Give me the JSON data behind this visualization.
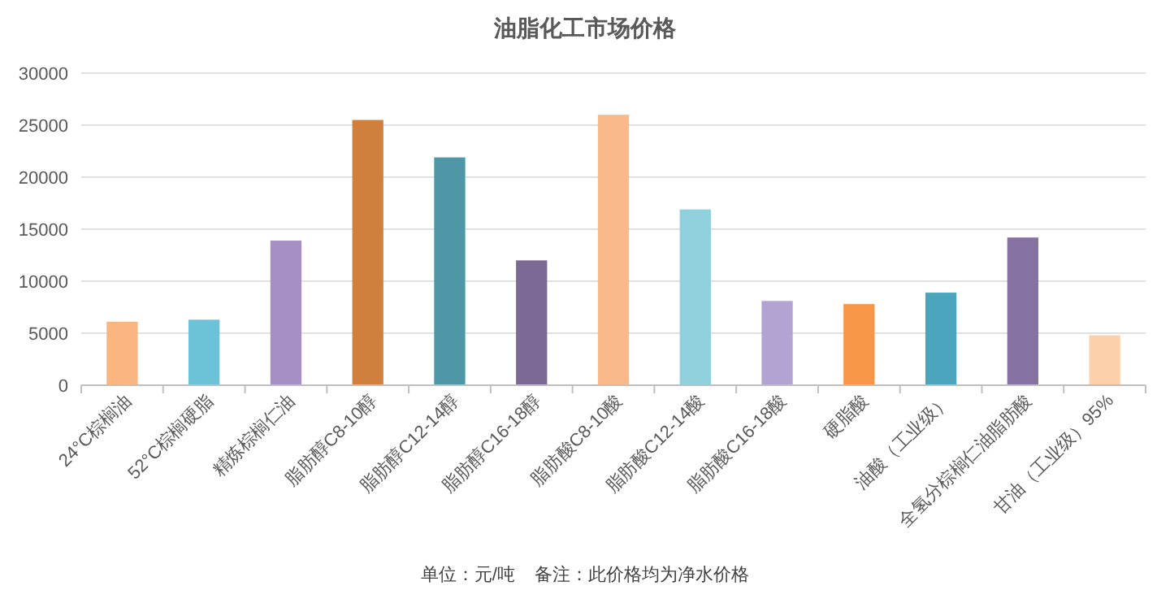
{
  "chart_data": {
    "type": "bar",
    "title": "油脂化工市场价格",
    "categories": [
      "24°C棕榈油",
      "52°C棕榈硬脂",
      "精炼棕榈仁油",
      "脂肪醇C8-10醇",
      "脂肪醇C12-14醇",
      "脂肪醇C16-18醇",
      "脂肪酸C8-10酸",
      "脂肪酸C12-14酸",
      "脂肪酸C16-18酸",
      "硬脂酸",
      "油酸（工业级）",
      "全氢分棕榈仁油脂肪酸",
      "甘油（工业级）95%"
    ],
    "values": [
      6100,
      6300,
      13900,
      25500,
      21900,
      12000,
      26000,
      16900,
      8100,
      7800,
      8900,
      14200,
      4800
    ],
    "colors": [
      "#f9b580",
      "#6cc3d8",
      "#a58fc4",
      "#d07f3c",
      "#4f97a6",
      "#7c6995",
      "#f9b98a",
      "#8fd0dc",
      "#b3a3d2",
      "#f79646",
      "#4aa4bb",
      "#8572a3",
      "#fcd0ab"
    ],
    "ylim": [
      0,
      30000
    ],
    "yticks": [
      0,
      5000,
      10000,
      15000,
      20000,
      25000,
      30000
    ],
    "grid": "y",
    "annotations": [
      "单位：元/吨    备注：此价格均为净水价格"
    ]
  }
}
